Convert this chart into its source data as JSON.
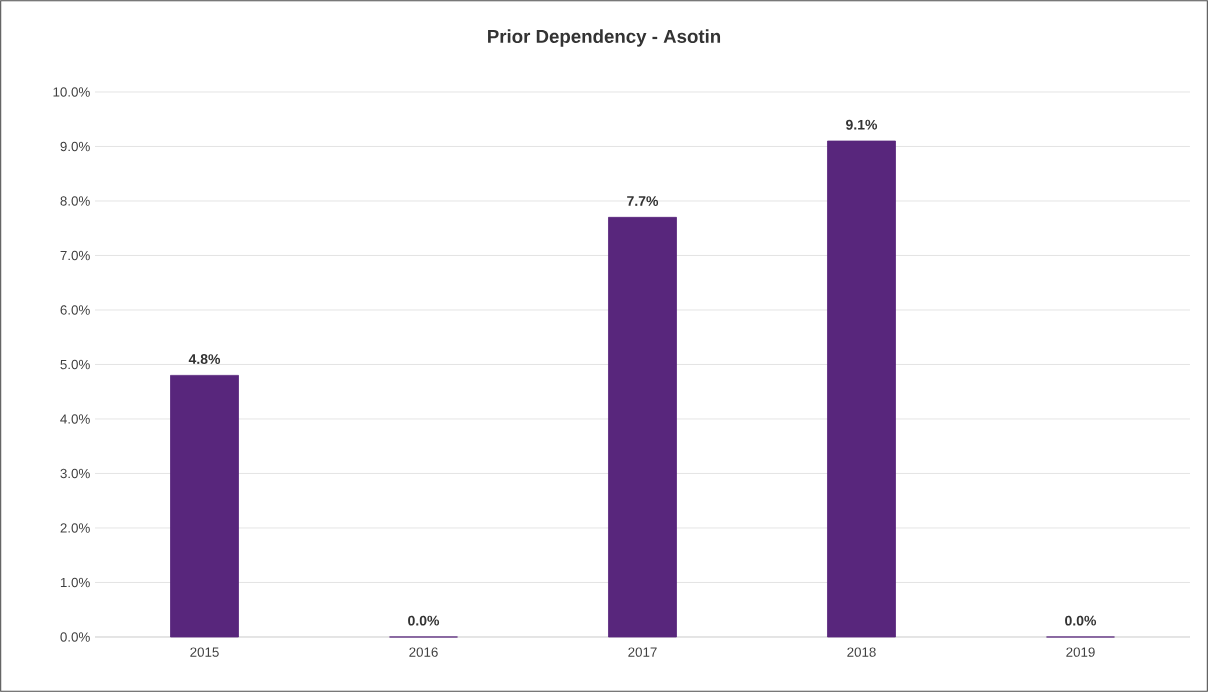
{
  "chart_data": {
    "type": "bar",
    "title": "Prior Dependency - Asotin",
    "categories": [
      "2015",
      "2016",
      "2017",
      "2018",
      "2019"
    ],
    "values": [
      4.8,
      0,
      7.7,
      9.1,
      0
    ],
    "value_labels": [
      "4.8%",
      "0.0%",
      "7.7%",
      "9.1%",
      "0.0%"
    ],
    "color": "#58267c",
    "ylim": [
      0,
      10
    ],
    "yticks": [
      {
        "value": 0,
        "label": "0.0%"
      },
      {
        "value": 1,
        "label": "1.0%"
      },
      {
        "value": 2,
        "label": "2.0%"
      },
      {
        "value": 3,
        "label": "3.0%"
      },
      {
        "value": 4,
        "label": "4.0%"
      },
      {
        "value": 5,
        "label": "5.0%"
      },
      {
        "value": 6,
        "label": "6.0%"
      },
      {
        "value": 7,
        "label": "7.0%"
      },
      {
        "value": 8,
        "label": "8.0%"
      },
      {
        "value": 9,
        "label": "9.0%"
      },
      {
        "value": 10,
        "label": "10.0%"
      }
    ],
    "grid": "y"
  }
}
